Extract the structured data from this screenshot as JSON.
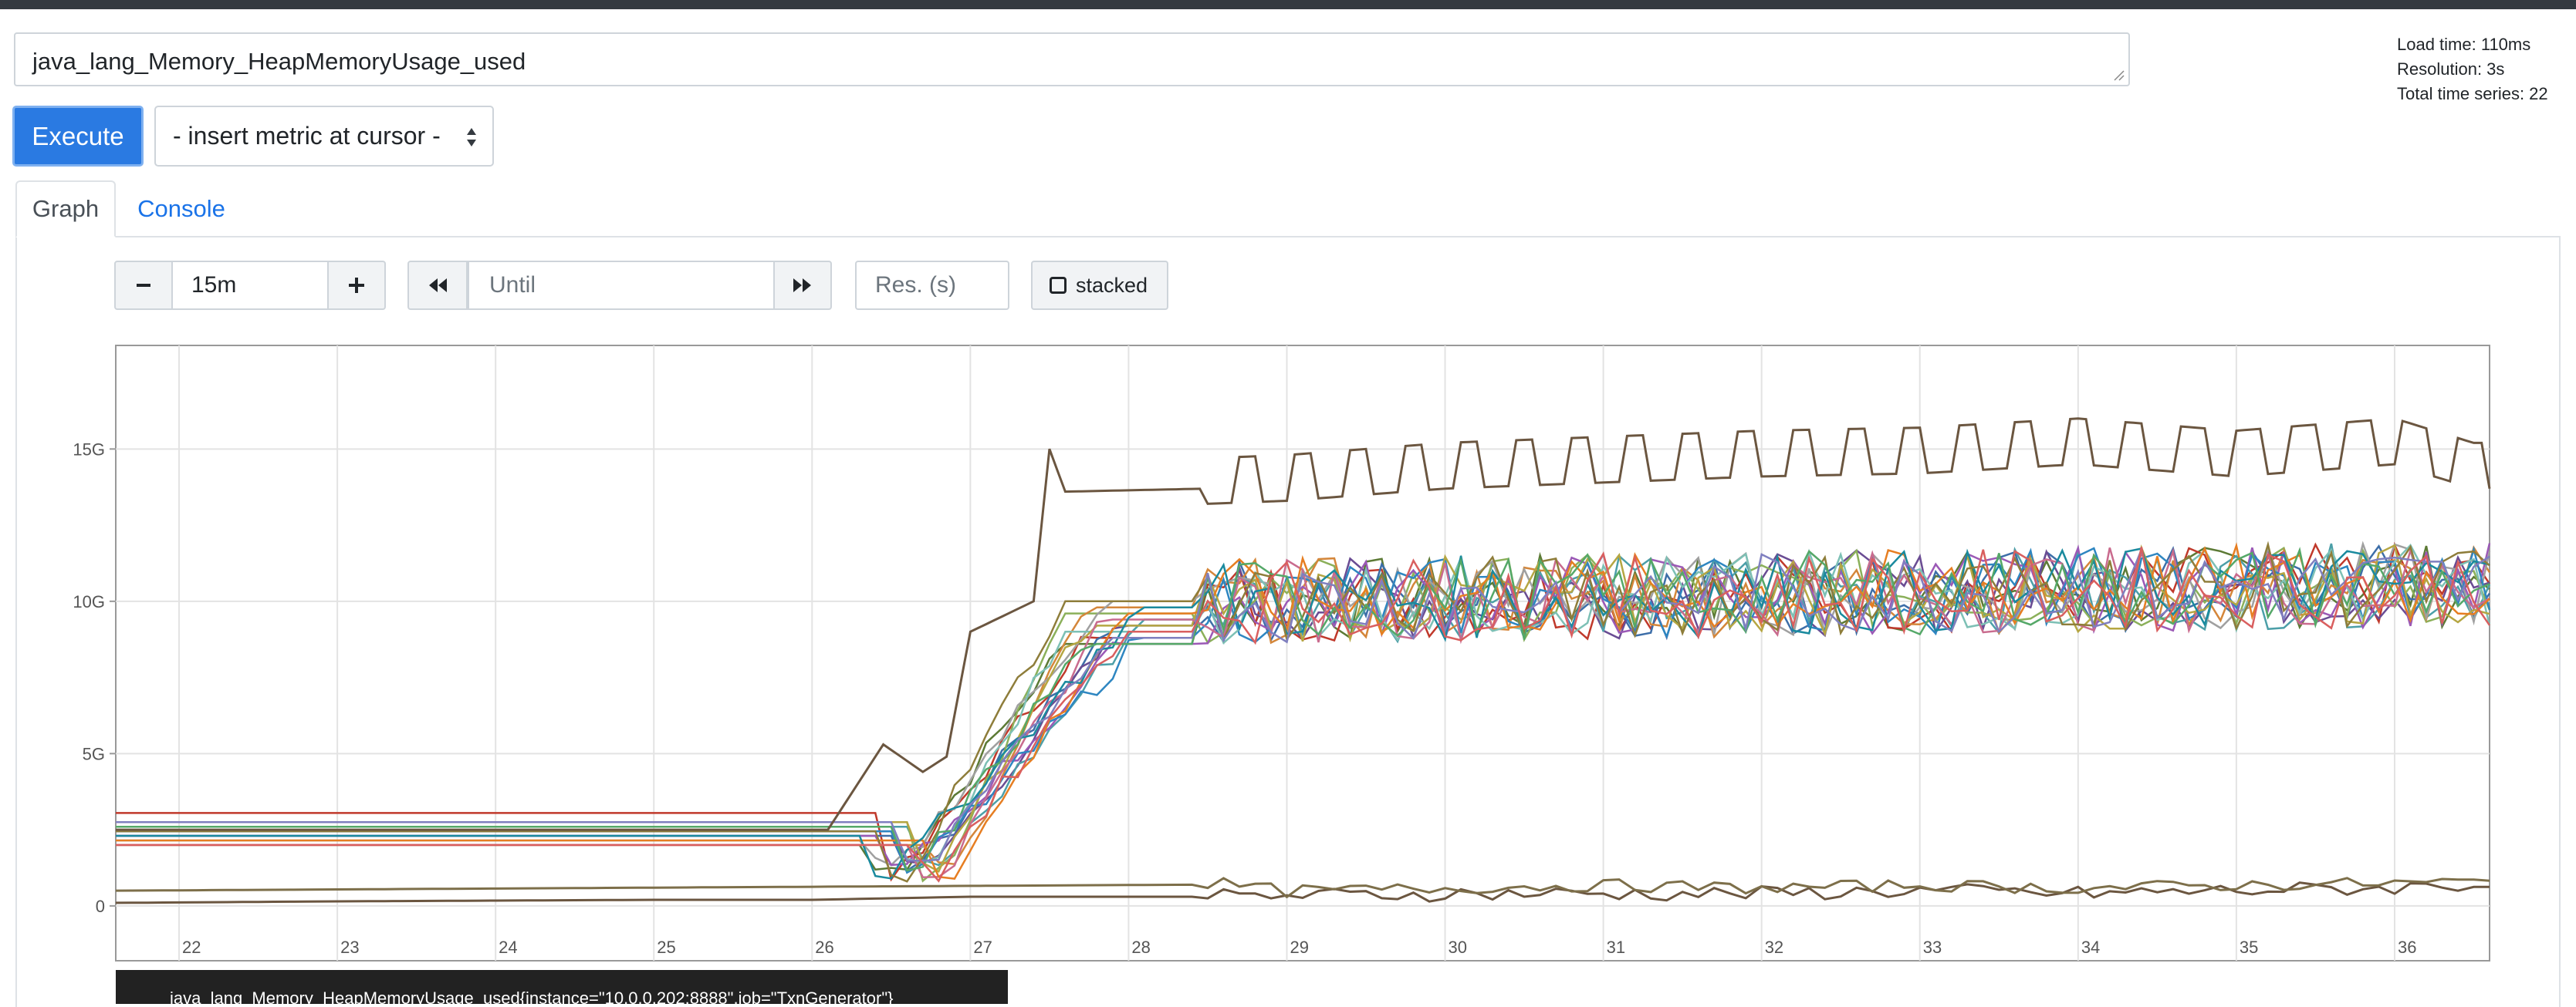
{
  "query": {
    "expression": "java_lang_Memory_HeapMemoryUsage_used"
  },
  "stats": {
    "load_time": "Load time: 110ms",
    "resolution": "Resolution: 3s",
    "total_series": "Total time series: 22"
  },
  "toolbar": {
    "execute_label": "Execute",
    "metric_select_value": "- insert metric at cursor -"
  },
  "tabs": {
    "graph": "Graph",
    "console": "Console"
  },
  "graph_controls": {
    "range_value": "15m",
    "until_placeholder": "Until",
    "res_placeholder": "Res. (s)",
    "stacked_label": "stacked",
    "minus_icon": "minus-icon",
    "plus_icon": "plus-icon",
    "back_icon": "fast-backward-icon",
    "forward_icon": "fast-forward-icon"
  },
  "tooltip": {
    "text": "java_lang_Memory_HeapMemoryUsage_used{instance=\"10.0.0.202:8888\",job=\"TxnGenerator\"}"
  },
  "chart_data": {
    "type": "line",
    "xlabel": "",
    "ylabel": "",
    "title": "",
    "x_ticks": [
      "22",
      "23",
      "24",
      "25",
      "26",
      "27",
      "28",
      "29",
      "30",
      "31",
      "32",
      "33",
      "34",
      "35",
      "36"
    ],
    "y_ticks": [
      "0",
      "5G",
      "10G",
      "15G"
    ],
    "xlim": [
      21.6,
      36.6
    ],
    "ylim": [
      -1.8,
      18.4
    ],
    "grid": true,
    "legend": "none",
    "series_count": 22,
    "palette": [
      "#5c7a35",
      "#c0392b",
      "#3d6ea8",
      "#6a4c93",
      "#4c9fa8",
      "#8bb05a",
      "#d4863a",
      "#a0a0a0",
      "#9b59b6",
      "#2e86c1",
      "#7dc0b5",
      "#b5a642",
      "#c96b8e",
      "#e67e22",
      "#1a8a9e",
      "#8e7d3a",
      "#55a868",
      "#7f7fbf",
      "#d95f5f",
      "#6d9e3f",
      "#4b5d8a",
      "#c5b358"
    ],
    "series": [
      {
        "color": "#6b5640",
        "values": [
          [
            21.6,
            2.5
          ],
          [
            25,
            2.5
          ],
          [
            26.1,
            2.5
          ],
          [
            26.45,
            5.3
          ],
          [
            26.7,
            4.4
          ],
          [
            26.85,
            4.9
          ],
          [
            27.0,
            9.0
          ],
          [
            27.4,
            10.0
          ],
          [
            27.5,
            15.0
          ],
          [
            27.6,
            13.6
          ],
          [
            28.5,
            13.7
          ],
          [
            29.0,
            13.8
          ],
          [
            30.0,
            14.2
          ],
          [
            31.0,
            14.4
          ],
          [
            32.0,
            14.6
          ],
          [
            33.0,
            14.7
          ],
          [
            34.0,
            15.0
          ],
          [
            35.0,
            14.6
          ],
          [
            36.0,
            15.0
          ],
          [
            36.5,
            14.2
          ]
        ],
        "pattern": "square",
        "amp": 1.0
      },
      {
        "color": "#6b5640",
        "values": [
          [
            21.6,
            0.1
          ],
          [
            23,
            0.15
          ],
          [
            25,
            0.2
          ],
          [
            26,
            0.2
          ],
          [
            27,
            0.3
          ],
          [
            28.4,
            0.3
          ],
          [
            28.6,
            0.2
          ],
          [
            30,
            0.3
          ],
          [
            31,
            0.3
          ],
          [
            32,
            0.3
          ],
          [
            33,
            0.4
          ],
          [
            34,
            0.3
          ],
          [
            35,
            0.4
          ],
          [
            36,
            0.5
          ],
          [
            36.5,
            0.6
          ]
        ],
        "pattern": "noise",
        "amp": 0.5
      },
      {
        "color": "#7d6f4a",
        "values": [
          [
            21.6,
            0.5
          ],
          [
            25,
            0.6
          ],
          [
            28.5,
            0.7
          ],
          [
            29,
            0.4
          ],
          [
            30,
            0.5
          ],
          [
            31,
            0.6
          ],
          [
            32,
            0.5
          ],
          [
            33,
            0.6
          ],
          [
            34,
            0.5
          ],
          [
            35,
            0.6
          ],
          [
            36.5,
            0.7
          ]
        ],
        "pattern": "noise",
        "amp": 0.4
      }
    ]
  }
}
